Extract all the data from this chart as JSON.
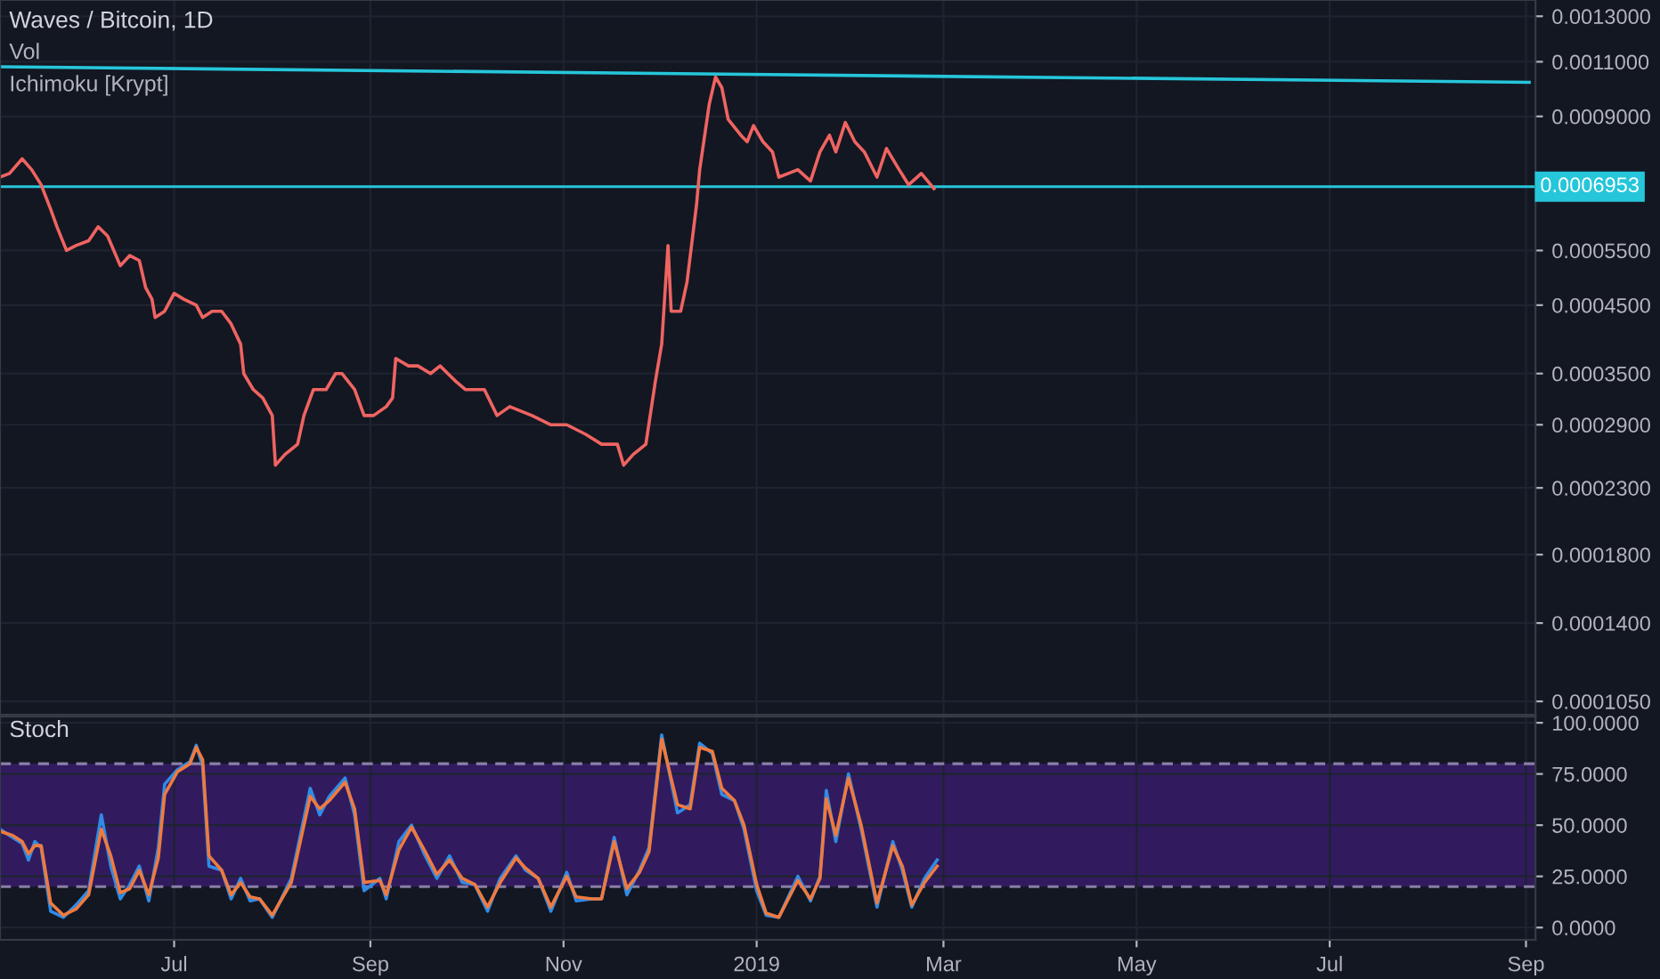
{
  "chart_data": [
    {
      "type": "line",
      "title": "Waves / Bitcoin, 1D",
      "annotations": [
        "Vol",
        "Ichimoku [Krypt]"
      ],
      "log": true,
      "grid": true,
      "tick_labels": "y",
      "xlim": [
        "2018-05-07",
        "2019-09-04"
      ],
      "xticks": [
        {
          "value": "2018-07-01",
          "label": null
        },
        {
          "value": "2018-09-01",
          "label": null
        },
        {
          "value": "2018-11-01",
          "label": null
        },
        {
          "value": "2019-01-01",
          "label": null
        },
        {
          "value": "2019-03-01",
          "label": null
        },
        {
          "value": "2019-05-01",
          "label": null
        },
        {
          "value": "2019-07-01",
          "label": null
        },
        {
          "value": "2019-09-01",
          "label": null
        }
      ],
      "ylim": [
        0.0001,
        0.00138
      ],
      "yticks": [
        {
          "value": 0.0013,
          "label": "0.0013000"
        },
        {
          "value": 0.0011,
          "label": "0.0011000"
        },
        {
          "value": 0.0009,
          "label": "0.0009000"
        },
        {
          "value": 0.00055,
          "label": "0.0005500"
        },
        {
          "value": 0.00045,
          "label": "0.0004500"
        },
        {
          "value": 0.00035,
          "label": "0.0003500"
        },
        {
          "value": 0.00029,
          "label": "0.0002900"
        },
        {
          "value": 0.00023,
          "label": "0.0002300"
        },
        {
          "value": 0.00018,
          "label": "0.0001800"
        },
        {
          "value": 0.00014,
          "label": "0.0001400"
        },
        {
          "value": 0.000105,
          "label": "0.0001050"
        }
      ],
      "ref_lines": [
        {
          "axis": "y",
          "value": 0.0006953,
          "label": "0.0006953",
          "color": "#26c6da",
          "line_style": "solid"
        }
      ],
      "series": [
        {
          "color": "#ef6461",
          "x": [
            "2018-05-07",
            "2018-05-10",
            "2018-05-14",
            "2018-05-17",
            "2018-05-20",
            "2018-05-23",
            "2018-05-25",
            "2018-05-28",
            "2018-05-31",
            "2018-06-04",
            "2018-06-07",
            "2018-06-10",
            "2018-06-14",
            "2018-06-17",
            "2018-06-20",
            "2018-06-22",
            "2018-06-24",
            "2018-06-25",
            "2018-06-28",
            "2018-07-01",
            "2018-07-04",
            "2018-07-08",
            "2018-07-10",
            "2018-07-13",
            "2018-07-16",
            "2018-07-19",
            "2018-07-22",
            "2018-07-23",
            "2018-07-26",
            "2018-07-29",
            "2018-08-01",
            "2018-08-02",
            "2018-08-05",
            "2018-08-09",
            "2018-08-11",
            "2018-08-14",
            "2018-08-18",
            "2018-08-21",
            "2018-08-23",
            "2018-08-27",
            "2018-08-30",
            "2018-09-02",
            "2018-09-06",
            "2018-09-08",
            "2018-09-09",
            "2018-09-13",
            "2018-09-16",
            "2018-09-20",
            "2018-09-23",
            "2018-09-28",
            "2018-10-01",
            "2018-10-07",
            "2018-10-11",
            "2018-10-15",
            "2018-10-22",
            "2018-10-28",
            "2018-11-02",
            "2018-11-08",
            "2018-11-13",
            "2018-11-18",
            "2018-11-20",
            "2018-11-23",
            "2018-11-27",
            "2018-11-30",
            "2018-12-02",
            "2018-12-04",
            "2018-12-05",
            "2018-12-08",
            "2018-12-10",
            "2018-12-13",
            "2018-12-14",
            "2018-12-17",
            "2018-12-19",
            "2018-12-21",
            "2018-12-23",
            "2018-12-27",
            "2018-12-29",
            "2018-12-31",
            "2019-01-03",
            "2019-01-06",
            "2019-01-08",
            "2019-01-11",
            "2019-01-14",
            "2019-01-18",
            "2019-01-21",
            "2019-01-24",
            "2019-01-26",
            "2019-01-29",
            "2019-02-01",
            "2019-02-04",
            "2019-02-08",
            "2019-02-11",
            "2019-02-15",
            "2019-02-18",
            "2019-02-22",
            "2019-02-25",
            "2019-02-26"
          ],
          "values": [
            0.00072,
            0.00073,
            0.00077,
            0.00074,
            0.0007,
            0.00064,
            0.0006,
            0.00055,
            0.00056,
            0.00057,
            0.0006,
            0.00058,
            0.00052,
            0.00054,
            0.00053,
            0.00048,
            0.00046,
            0.00043,
            0.00044,
            0.00047,
            0.00046,
            0.00045,
            0.00043,
            0.00044,
            0.00044,
            0.00042,
            0.00039,
            0.00035,
            0.00033,
            0.00032,
            0.0003,
            0.00025,
            0.00026,
            0.00027,
            0.0003,
            0.00033,
            0.00033,
            0.00035,
            0.00035,
            0.00033,
            0.0003,
            0.0003,
            0.00031,
            0.00032,
            0.00037,
            0.00036,
            0.00036,
            0.00035,
            0.00036,
            0.00034,
            0.00033,
            0.00033,
            0.0003,
            0.00031,
            0.0003,
            0.00029,
            0.00029,
            0.00028,
            0.00027,
            0.00027,
            0.00025,
            0.00026,
            0.00027,
            0.00034,
            0.00039,
            0.00056,
            0.00044,
            0.00044,
            0.00049,
            0.00065,
            0.00074,
            0.00094,
            0.00104,
            0.001,
            0.00089,
            0.00084,
            0.00082,
            0.00087,
            0.00082,
            0.00079,
            0.00072,
            0.00073,
            0.00074,
            0.00071,
            0.00079,
            0.00084,
            0.00079,
            0.00088,
            0.00082,
            0.00079,
            0.00072,
            0.0008,
            0.00074,
            0.0007,
            0.00073,
            0.0007,
            0.00069
          ]
        },
        {
          "color": "#26c6da",
          "x": [
            "2018-05-07",
            "2019-09-02"
          ],
          "values": [
            0.00108,
            0.00102
          ]
        }
      ]
    },
    {
      "type": "line",
      "title": "Stoch",
      "grid": true,
      "xlim": [
        "2018-05-07",
        "2019-09-04"
      ],
      "xticks": [
        {
          "value": "2018-07-01",
          "label": "Jul"
        },
        {
          "value": "2018-09-01",
          "label": "Sep"
        },
        {
          "value": "2018-11-01",
          "label": "Nov"
        },
        {
          "value": "2019-01-01",
          "label": "2019"
        },
        {
          "value": "2019-03-01",
          "label": "Mar"
        },
        {
          "value": "2019-05-01",
          "label": "May"
        },
        {
          "value": "2019-07-01",
          "label": "Jul"
        },
        {
          "value": "2019-09-01",
          "label": "Sep"
        }
      ],
      "ylim": [
        -6,
        103
      ],
      "yticks": [
        {
          "value": 0,
          "label": "0.0000"
        },
        {
          "value": 25,
          "label": "25.0000"
        },
        {
          "value": 50,
          "label": "50.0000"
        },
        {
          "value": 75,
          "label": "75.0000"
        },
        {
          "value": 100,
          "label": "100.0000"
        }
      ],
      "bands": [
        {
          "axis": "y",
          "from": 20,
          "to": 80,
          "color": "#311b5e"
        }
      ],
      "ref_lines": [
        {
          "axis": "y",
          "value": 80,
          "color": "#8a7fa6",
          "line_style": "dashed"
        },
        {
          "axis": "y",
          "value": 20,
          "color": "#8a7fa6",
          "line_style": "dashed"
        }
      ],
      "series": [
        {
          "color": "#2f8be6",
          "x": [
            "2018-05-07",
            "2018-05-11",
            "2018-05-14",
            "2018-05-16",
            "2018-05-18",
            "2018-05-20",
            "2018-05-23",
            "2018-05-27",
            "2018-05-31",
            "2018-06-04",
            "2018-06-08",
            "2018-06-11",
            "2018-06-14",
            "2018-06-17",
            "2018-06-20",
            "2018-06-23",
            "2018-06-26",
            "2018-06-28",
            "2018-07-02",
            "2018-07-06",
            "2018-07-08",
            "2018-07-10",
            "2018-07-12",
            "2018-07-16",
            "2018-07-19",
            "2018-07-22",
            "2018-07-25",
            "2018-07-28",
            "2018-08-01",
            "2018-08-07",
            "2018-08-13",
            "2018-08-16",
            "2018-08-19",
            "2018-08-24",
            "2018-08-27",
            "2018-08-30",
            "2018-09-04",
            "2018-09-06",
            "2018-09-10",
            "2018-09-14",
            "2018-09-18",
            "2018-09-22",
            "2018-09-26",
            "2018-09-30",
            "2018-10-04",
            "2018-10-08",
            "2018-10-12",
            "2018-10-17",
            "2018-10-20",
            "2018-10-24",
            "2018-10-28",
            "2018-11-02",
            "2018-11-05",
            "2018-11-10",
            "2018-11-13",
            "2018-11-17",
            "2018-11-21",
            "2018-11-25",
            "2018-11-28",
            "2018-12-02",
            "2018-12-07",
            "2018-12-11",
            "2018-12-14",
            "2018-12-18",
            "2018-12-21",
            "2018-12-25",
            "2018-12-28",
            "2019-01-01",
            "2019-01-04",
            "2019-01-08",
            "2019-01-14",
            "2019-01-18",
            "2019-01-21",
            "2019-01-23",
            "2019-01-26",
            "2019-01-30",
            "2019-02-03",
            "2019-02-08",
            "2019-02-13",
            "2019-02-16",
            "2019-02-19",
            "2019-02-23",
            "2019-02-27"
          ],
          "values": [
            48,
            44,
            41,
            33,
            42,
            39,
            8,
            5,
            11,
            18,
            55,
            30,
            14,
            21,
            30,
            13,
            39,
            70,
            77,
            81,
            89,
            79,
            30,
            28,
            14,
            24,
            13,
            14,
            5,
            24,
            68,
            55,
            64,
            73,
            55,
            18,
            24,
            14,
            42,
            50,
            36,
            24,
            35,
            22,
            21,
            8,
            24,
            35,
            28,
            24,
            8,
            27,
            13,
            14,
            14,
            44,
            16,
            28,
            39,
            94,
            56,
            60,
            90,
            85,
            65,
            62,
            48,
            18,
            6,
            5,
            25,
            13,
            25,
            67,
            42,
            75,
            48,
            10,
            42,
            28,
            10,
            24,
            33
          ]
        },
        {
          "color": "#f07a3e",
          "x": [
            "2018-05-07",
            "2018-05-11",
            "2018-05-14",
            "2018-05-16",
            "2018-05-18",
            "2018-05-20",
            "2018-05-23",
            "2018-05-27",
            "2018-05-31",
            "2018-06-04",
            "2018-06-08",
            "2018-06-11",
            "2018-06-14",
            "2018-06-17",
            "2018-06-20",
            "2018-06-23",
            "2018-06-26",
            "2018-06-28",
            "2018-07-02",
            "2018-07-06",
            "2018-07-08",
            "2018-07-10",
            "2018-07-12",
            "2018-07-16",
            "2018-07-19",
            "2018-07-22",
            "2018-07-25",
            "2018-07-28",
            "2018-08-01",
            "2018-08-07",
            "2018-08-13",
            "2018-08-16",
            "2018-08-19",
            "2018-08-24",
            "2018-08-27",
            "2018-08-30",
            "2018-09-04",
            "2018-09-06",
            "2018-09-10",
            "2018-09-14",
            "2018-09-18",
            "2018-09-22",
            "2018-09-26",
            "2018-09-30",
            "2018-10-04",
            "2018-10-08",
            "2018-10-12",
            "2018-10-17",
            "2018-10-20",
            "2018-10-24",
            "2018-10-28",
            "2018-11-02",
            "2018-11-05",
            "2018-11-10",
            "2018-11-13",
            "2018-11-17",
            "2018-11-21",
            "2018-11-25",
            "2018-11-28",
            "2018-12-02",
            "2018-12-07",
            "2018-12-11",
            "2018-12-14",
            "2018-12-18",
            "2018-12-21",
            "2018-12-25",
            "2018-12-28",
            "2019-01-01",
            "2019-01-04",
            "2019-01-08",
            "2019-01-14",
            "2019-01-18",
            "2019-01-21",
            "2019-01-23",
            "2019-01-26",
            "2019-01-30",
            "2019-02-03",
            "2019-02-08",
            "2019-02-13",
            "2019-02-16",
            "2019-02-19",
            "2019-02-23",
            "2019-02-27"
          ],
          "values": [
            47,
            45,
            42,
            36,
            40,
            40,
            12,
            6,
            9,
            16,
            48,
            35,
            17,
            19,
            28,
            16,
            34,
            65,
            76,
            80,
            88,
            82,
            35,
            28,
            16,
            22,
            15,
            14,
            6,
            22,
            64,
            58,
            62,
            71,
            58,
            22,
            23,
            16,
            38,
            49,
            38,
            26,
            33,
            24,
            21,
            10,
            22,
            34,
            29,
            24,
            10,
            25,
            15,
            14,
            14,
            42,
            19,
            27,
            37,
            92,
            60,
            58,
            88,
            86,
            68,
            62,
            50,
            21,
            7,
            5,
            23,
            14,
            24,
            63,
            45,
            73,
            50,
            12,
            40,
            30,
            11,
            22,
            30
          ]
        }
      ]
    }
  ]
}
